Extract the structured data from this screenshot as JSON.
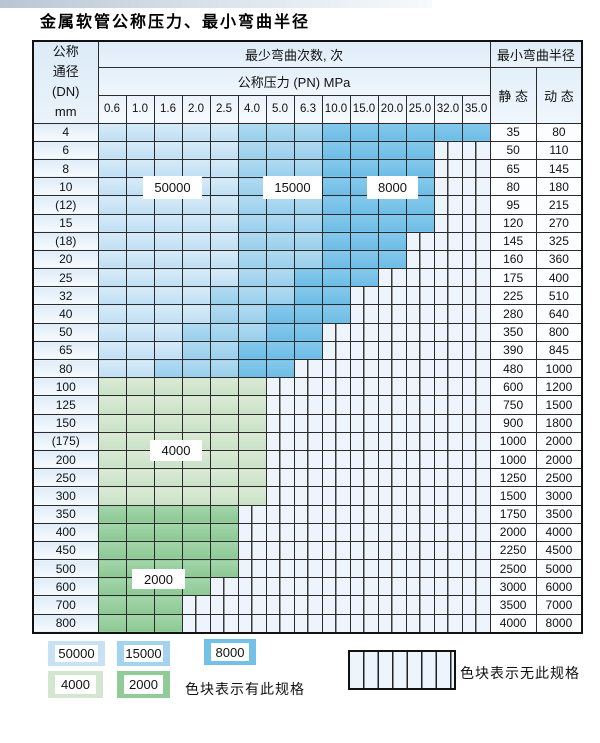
{
  "title": "金属软管公称压力、最小弯曲半径",
  "table": {
    "header": {
      "dn_lines": [
        "公称",
        "通径",
        "(DN)",
        "mm"
      ],
      "bend_times_label": "最少弯曲次数, 次",
      "pressure_label": "公称压力 (PN) MPa",
      "pressure_cols": [
        "0.6",
        "1.0",
        "1.6",
        "2.0",
        "2.5",
        "4.0",
        "5.0",
        "6.3",
        "10.0",
        "15.0",
        "20.0",
        "25.0",
        "32.0",
        "35.0"
      ],
      "radius_label": "最小弯曲半径",
      "static_label": "静 态",
      "dynamic_label": "动 态"
    },
    "band_legend_values": {
      "light_blue": "50000",
      "mid_blue": "15000",
      "dark_blue": "8000",
      "light_green": "4000",
      "mid_green": "2000"
    },
    "rows": [
      {
        "dn": "4",
        "static": "35",
        "dynamic": "80",
        "band": "blue",
        "mid": 5,
        "dark": 8,
        "end": 13,
        "pn_max": "35.0"
      },
      {
        "dn": "6",
        "static": "50",
        "dynamic": "110",
        "band": "blue",
        "mid": 5,
        "dark": 8,
        "end": 11,
        "pn_max": "25.0"
      },
      {
        "dn": "8",
        "static": "65",
        "dynamic": "145",
        "band": "blue",
        "mid": 5,
        "dark": 8,
        "end": 11,
        "pn_max": "25.0"
      },
      {
        "dn": "10",
        "static": "80",
        "dynamic": "180",
        "band": "blue",
        "mid": 5,
        "dark": 8,
        "end": 11,
        "pn_max": "25.0"
      },
      {
        "dn": "(12)",
        "static": "95",
        "dynamic": "215",
        "band": "blue",
        "mid": 5,
        "dark": 8,
        "end": 11,
        "pn_max": "25.0"
      },
      {
        "dn": "15",
        "static": "120",
        "dynamic": "270",
        "band": "blue",
        "mid": 5,
        "dark": 8,
        "end": 11,
        "pn_max": "25.0"
      },
      {
        "dn": "(18)",
        "static": "145",
        "dynamic": "325",
        "band": "blue",
        "mid": 5,
        "dark": 8,
        "end": 10,
        "pn_max": "20.0"
      },
      {
        "dn": "20",
        "static": "160",
        "dynamic": "360",
        "band": "blue",
        "mid": 5,
        "dark": 8,
        "end": 10,
        "pn_max": "20.0"
      },
      {
        "dn": "25",
        "static": "175",
        "dynamic": "400",
        "band": "blue",
        "mid": 5,
        "dark": 7,
        "end": 9,
        "pn_max": "15.0"
      },
      {
        "dn": "32",
        "static": "225",
        "dynamic": "510",
        "band": "blue",
        "mid": 4,
        "dark": 7,
        "end": 8,
        "pn_max": "10.0"
      },
      {
        "dn": "40",
        "static": "280",
        "dynamic": "640",
        "band": "blue",
        "mid": 4,
        "dark": 6,
        "end": 8,
        "pn_max": "10.0"
      },
      {
        "dn": "50",
        "static": "350",
        "dynamic": "800",
        "band": "blue",
        "mid": 3,
        "dark": 6,
        "end": 7,
        "pn_max": "6.3"
      },
      {
        "dn": "65",
        "static": "390",
        "dynamic": "845",
        "band": "blue",
        "mid": 3,
        "dark": 5,
        "end": 7,
        "pn_max": "6.3"
      },
      {
        "dn": "80",
        "static": "480",
        "dynamic": "1000",
        "band": "blue",
        "mid": 2,
        "dark": 5,
        "end": 6,
        "pn_max": "5.0"
      },
      {
        "dn": "100",
        "static": "600",
        "dynamic": "1200",
        "band": "g4",
        "end": 5,
        "pn_max": "4.0"
      },
      {
        "dn": "125",
        "static": "750",
        "dynamic": "1500",
        "band": "g4",
        "end": 5,
        "pn_max": "4.0"
      },
      {
        "dn": "150",
        "static": "900",
        "dynamic": "1800",
        "band": "g4",
        "end": 5,
        "pn_max": "4.0"
      },
      {
        "dn": "(175)",
        "static": "1000",
        "dynamic": "2000",
        "band": "g4",
        "end": 5,
        "pn_max": "4.0"
      },
      {
        "dn": "200",
        "static": "1000",
        "dynamic": "2000",
        "band": "g4",
        "end": 5,
        "pn_max": "4.0"
      },
      {
        "dn": "250",
        "static": "1250",
        "dynamic": "2500",
        "band": "g4",
        "end": 5,
        "pn_max": "4.0"
      },
      {
        "dn": "300",
        "static": "1500",
        "dynamic": "3000",
        "band": "g4",
        "end": 5,
        "pn_max": "4.0"
      },
      {
        "dn": "350",
        "static": "1750",
        "dynamic": "3500",
        "band": "g2",
        "end": 4,
        "pn_max": "2.5"
      },
      {
        "dn": "400",
        "static": "2000",
        "dynamic": "4000",
        "band": "g2",
        "end": 4,
        "pn_max": "2.5"
      },
      {
        "dn": "450",
        "static": "2250",
        "dynamic": "4500",
        "band": "g2",
        "end": 4,
        "pn_max": "2.5"
      },
      {
        "dn": "500",
        "static": "2500",
        "dynamic": "5000",
        "band": "g2",
        "end": 4,
        "pn_max": "2.5"
      },
      {
        "dn": "600",
        "static": "3000",
        "dynamic": "6000",
        "band": "g2",
        "end": 3,
        "pn_max": "2.0"
      },
      {
        "dn": "700",
        "static": "3500",
        "dynamic": "7000",
        "band": "g2",
        "end": 2,
        "pn_max": "1.6"
      },
      {
        "dn": "800",
        "static": "4000",
        "dynamic": "8000",
        "band": "g2",
        "end": 2,
        "pn_max": "1.6"
      }
    ],
    "overlays": [
      {
        "text": "50000",
        "class": "ov-50000"
      },
      {
        "text": "15000",
        "class": "ov-15000"
      },
      {
        "text": "8000",
        "class": "ov-8000"
      },
      {
        "text": "4000",
        "class": "ov-4000"
      },
      {
        "text": "2000",
        "class": "ov-2000"
      }
    ]
  },
  "legend": {
    "has_spec_items": [
      {
        "label": "50000",
        "class": "sw-b1"
      },
      {
        "label": "15000",
        "class": "sw-b2"
      },
      {
        "label": "8000",
        "class": "sw-b3"
      },
      {
        "label": "4000",
        "class": "sw-g1"
      },
      {
        "label": "2000",
        "class": "sw-g2"
      }
    ],
    "has_spec_text": "色块表示有此规格",
    "no_spec_text": "色块表示无此规格"
  },
  "colors": {
    "blue_50000": "#c8e4f6",
    "blue_15000": "#9dd1ee",
    "blue_8000": "#72c0e7",
    "green_4000": "#d2e5cd",
    "green_2000": "#93cc9b",
    "hatch_bg": "#eef4fb",
    "grid_line": "#2b2b2b"
  }
}
